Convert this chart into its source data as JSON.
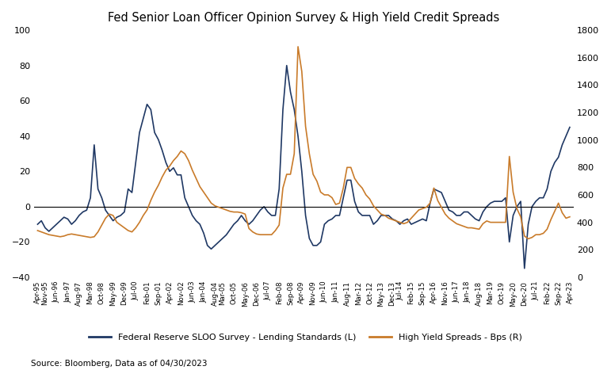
{
  "title": "Fed Senior Loan Officer Opinion Survey & High Yield Credit Spreads",
  "source": "Source: Bloomberg, Data as of 04/30/2023",
  "legend_left": "Federal Reserve SLOO Survey - Lending Standards (L)",
  "legend_right": "High Yield Spreads - Bps (R)",
  "color_left": "#1f3864",
  "color_right": "#c97b2a",
  "background_color": "#ffffff",
  "ylim_left": [
    -40,
    100
  ],
  "ylim_right": [
    0,
    1800
  ],
  "yticks_left": [
    -40,
    -20,
    0,
    20,
    40,
    60,
    80,
    100
  ],
  "yticks_right": [
    0,
    200,
    400,
    600,
    800,
    1000,
    1200,
    1400,
    1600,
    1800
  ],
  "dates": [
    "Apr-95",
    "Nov-95",
    "Jun-96",
    "Jan-97",
    "Aug-97",
    "Mar-98",
    "Oct-98",
    "May-99",
    "Dec-99",
    "Jul-00",
    "Feb-01",
    "Sep-01",
    "Apr-02",
    "Nov-02",
    "Jun-03",
    "Jan-04",
    "Aug-04",
    "Mar-05",
    "Oct-05",
    "May-06",
    "Dec-06",
    "Jul-07",
    "Feb-08",
    "Sep-08",
    "Apr-09",
    "Nov-09",
    "Jun-10",
    "Jan-11",
    "Aug-11",
    "Mar-12",
    "Oct-12",
    "May-13",
    "Dec-13",
    "Jul-14",
    "Feb-15",
    "Sep-15",
    "Apr-16",
    "Nov-16",
    "Jun-17",
    "Jan-18",
    "Aug-18",
    "Mar-19",
    "Oct-19",
    "May-20",
    "Dec-20",
    "Jul-21",
    "Feb-22",
    "Sep-22",
    "Apr-23"
  ],
  "sloo": [
    -10,
    -14,
    -8,
    -10,
    -3,
    35,
    -2,
    -7,
    -5,
    42,
    58,
    35,
    22,
    5,
    -8,
    -22,
    -20,
    -13,
    -8,
    -8,
    -5,
    -2,
    55,
    65,
    20,
    -22,
    -10,
    -5,
    15,
    3,
    -5,
    -10,
    -5,
    -8,
    -10,
    -8,
    10,
    2,
    -5,
    -3,
    -8,
    2,
    3,
    -20,
    -35,
    0,
    10,
    28,
    45
  ],
  "hy_spreads": [
    340,
    310,
    295,
    315,
    295,
    295,
    430,
    460,
    400,
    400,
    490,
    730,
    810,
    900,
    780,
    580,
    510,
    480,
    475,
    460,
    310,
    310,
    380,
    750,
    1680,
    750,
    600,
    530,
    800,
    680,
    570,
    490,
    430,
    410,
    430,
    490,
    650,
    430,
    390,
    360,
    350,
    410,
    400,
    880,
    300,
    290,
    350,
    540,
    440
  ],
  "sloo_full": [
    -10,
    -8,
    -12,
    -14,
    -12,
    -10,
    -8,
    -6,
    -7,
    -10,
    -8,
    -5,
    -3,
    -2,
    5,
    35,
    10,
    5,
    -2,
    -5,
    -8,
    -6,
    -5,
    -3,
    10,
    8,
    25,
    42,
    50,
    58,
    55,
    42,
    38,
    32,
    25,
    20,
    22,
    18,
    18,
    5,
    0,
    -5,
    -8,
    -10,
    -15,
    -22,
    -24,
    -22,
    -20,
    -18,
    -16,
    -13,
    -10,
    -8,
    -5,
    -8,
    -10,
    -8,
    -5,
    -2,
    0,
    -3,
    -5,
    -5,
    10,
    55,
    80,
    65,
    55,
    40,
    20,
    -5,
    -18,
    -22,
    -22,
    -20,
    -10,
    -8,
    -7,
    -5,
    -5,
    5,
    15,
    15,
    3,
    -3,
    -5,
    -5,
    -5,
    -10,
    -8,
    -5,
    -5,
    -5,
    -7,
    -8,
    -10,
    -8,
    -7,
    -10,
    -9,
    -8,
    -7,
    -8,
    2,
    10,
    9,
    8,
    3,
    -2,
    -3,
    -5,
    -5,
    -3,
    -3,
    -5,
    -7,
    -8,
    -3,
    0,
    2,
    3,
    3,
    3,
    5,
    -20,
    -5,
    0,
    3,
    -35,
    -10,
    0,
    3,
    5,
    5,
    10,
    20,
    25,
    28,
    35,
    40,
    45
  ],
  "hy_spreads_full": [
    340,
    330,
    320,
    310,
    305,
    300,
    295,
    300,
    310,
    315,
    310,
    305,
    300,
    295,
    290,
    295,
    330,
    380,
    430,
    460,
    450,
    400,
    380,
    360,
    340,
    330,
    360,
    400,
    450,
    490,
    560,
    620,
    670,
    730,
    780,
    810,
    850,
    880,
    920,
    900,
    850,
    780,
    720,
    660,
    620,
    580,
    540,
    520,
    510,
    500,
    490,
    480,
    475,
    475,
    470,
    460,
    355,
    330,
    315,
    310,
    310,
    310,
    310,
    340,
    380,
    650,
    750,
    750,
    900,
    1680,
    1500,
    1100,
    900,
    750,
    700,
    620,
    600,
    600,
    580,
    530,
    540,
    650,
    800,
    800,
    720,
    680,
    650,
    600,
    570,
    520,
    490,
    460,
    450,
    430,
    420,
    410,
    400,
    390,
    400,
    430,
    460,
    490,
    500,
    510,
    540,
    650,
    560,
    510,
    460,
    430,
    410,
    390,
    380,
    370,
    360,
    360,
    355,
    350,
    390,
    410,
    400,
    400,
    400,
    400,
    400,
    880,
    620,
    500,
    440,
    300,
    280,
    290,
    310,
    310,
    320,
    350,
    420,
    480,
    540,
    470,
    430,
    440
  ],
  "xtick_labels": [
    "Apr-95",
    "Nov-95",
    "Jun-96",
    "Jan-97",
    "Aug-97",
    "Mar-98",
    "Oct-98",
    "May-99",
    "Dec-99",
    "Jul-00",
    "Feb-01",
    "Sep-01",
    "Apr-02",
    "Nov-02",
    "Jun-03",
    "Jan-04",
    "Aug-04",
    "Mar-05",
    "Oct-05",
    "May-06",
    "Dec-06",
    "Jul-07",
    "Feb-08",
    "Sep-08",
    "Apr-09",
    "Nov-09",
    "Jun-10",
    "Jan-11",
    "Aug-11",
    "Mar-12",
    "Oct-12",
    "May-13",
    "Dec-13",
    "Jul-14",
    "Feb-15",
    "Sep-15",
    "Apr-16",
    "Nov-16",
    "Jun-17",
    "Jan-18",
    "Aug-18",
    "Mar-19",
    "Oct-19",
    "May-20",
    "Dec-20",
    "Jul-21",
    "Feb-22",
    "Sep-22",
    "Apr-23"
  ]
}
